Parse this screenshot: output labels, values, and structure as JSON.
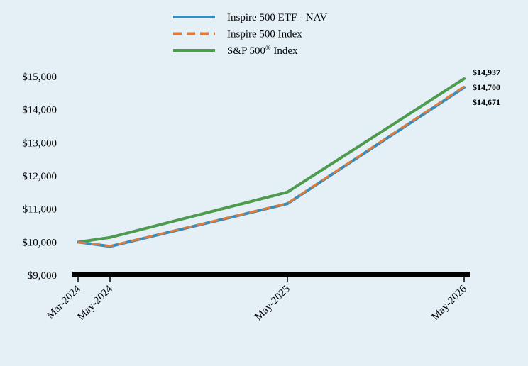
{
  "chart_data": {
    "type": "line",
    "title": "",
    "xlabel": "",
    "ylabel": "",
    "x": [
      "Mar-2024",
      "May-2024",
      "May-2025",
      "May-2026"
    ],
    "ylim": [
      9000,
      15000
    ],
    "yticks": [
      "$9,000",
      "$10,000",
      "$11,000",
      "$12,000",
      "$13,000",
      "$14,000",
      "$15,000"
    ],
    "grid": false,
    "legend_position": "top",
    "series": [
      {
        "name": "Inspire 500 ETF - NAV",
        "values": [
          10000,
          9870,
          11160,
          14671
        ],
        "color": "#3a8ab7",
        "dashed": false,
        "end_label": "$14,671"
      },
      {
        "name": "Inspire 500 Index",
        "values": [
          10000,
          9880,
          11170,
          14700
        ],
        "color": "#e07b39",
        "dashed": true,
        "end_label": "$14,700"
      },
      {
        "name": "S&P 500",
        "name_superscript": "®",
        "name_suffix": " Index",
        "values": [
          10000,
          10140,
          11510,
          14937
        ],
        "color": "#4e9a4e",
        "dashed": false,
        "end_label": "$14,937"
      }
    ]
  }
}
